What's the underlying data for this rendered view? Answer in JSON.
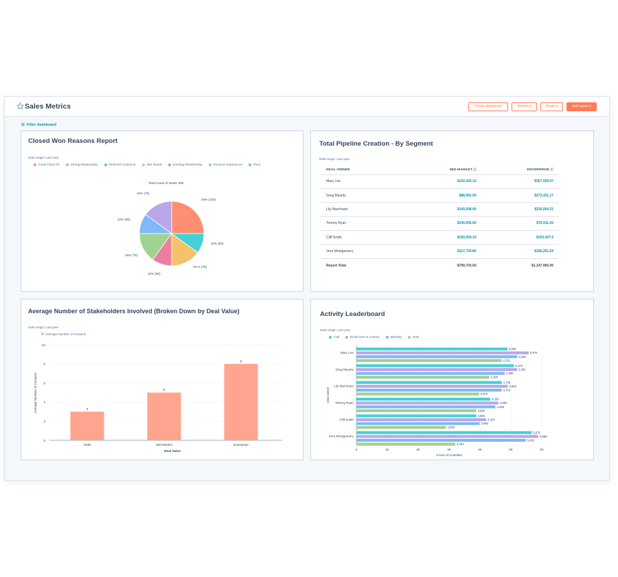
{
  "header": {
    "title": "Sales Metrics",
    "buttons": {
      "create_dashboard": "Create dashboard",
      "actions": "Actions ▾",
      "share": "Share ▾",
      "add_report": "Add report ▾"
    }
  },
  "filter_label": "Filter dashboard",
  "colors": {
    "accent": "#ff7a59",
    "link": "#0091ae",
    "text": "#33475b"
  },
  "closed_won": {
    "title": "Closed Won Reasons Report",
    "date_range": "Date range: Last Year",
    "legend": [
      {
        "name": "Good Client Fit",
        "color": "#ff8f73"
      },
      {
        "name": "Strong Relationship",
        "color": "#b9a7e8"
      },
      {
        "name": "Referred Customer",
        "color": "#45d0d6"
      },
      {
        "name": "Met Needs",
        "color": "#f5c26b"
      },
      {
        "name": "Existing Relationship",
        "color": "#ea80a0"
      },
      {
        "name": "Previous Experience",
        "color": "#a2d28f"
      },
      {
        "name": "Price",
        "color": "#7fb9f7"
      }
    ],
    "total_label": "Total Count of Deals: 500",
    "slice_labels": [
      "25% (125)",
      "10% (50)",
      "15 % (75)",
      "10% (50)",
      "15% (75)",
      "10% (50)",
      "15% (75)"
    ]
  },
  "pipeline": {
    "title": "Total Pipeline Creation - By Segment",
    "date_range": "Date range: Last year",
    "headers": [
      "DEAL OWNER",
      "MID-MARKET",
      "ENTERPRISE"
    ],
    "rows": [
      [
        "Mary Lee",
        "$102,432.10",
        "$267,029.07"
      ],
      [
        "Greg Mauritz",
        "$88,981.00",
        "$272,431.17"
      ],
      [
        "Lily Marchand",
        "$100,008.00",
        "$220,004.22"
      ],
      [
        "Tommy Ryan",
        "$240,556.00",
        "$70,911.00"
      ],
      [
        "Cliff Smith",
        "$150,004.10",
        "$150,437.9"
      ],
      [
        "Vera Montgomery",
        "$117,720.80",
        "$166,251.64"
      ]
    ],
    "total": [
      "Report Total",
      "$799,702.00",
      "$1,147,065.00"
    ]
  },
  "stakeholders": {
    "title": "Average Number of Stakeholders Involved (Broken Down by Deal Value)",
    "date_range": "Date range: Last year"
  },
  "leaderboard": {
    "title": "Activity Leaderboard",
    "date_range": "Date range: Last  year"
  },
  "chart_data": [
    {
      "type": "pie",
      "title": "Closed Won Reasons Report",
      "total_label": "Total Count of Deals: 500",
      "categories": [
        "Good Client Fit",
        "Referred Customer",
        "Met Needs",
        "Existing Relationship",
        "Previous Experience",
        "Price",
        "Strong Relationship"
      ],
      "values": [
        125,
        50,
        75,
        50,
        75,
        50,
        75
      ],
      "colors": [
        "#ff8f73",
        "#45d0d6",
        "#f5c26b",
        "#ea80a0",
        "#a2d28f",
        "#7fb9f7",
        "#b9a7e8"
      ]
    },
    {
      "type": "bar",
      "title": "Average Number of Stakeholders Involved (Broken Down by Deal Value)",
      "series": [
        {
          "name": "Average Number of Contacts",
          "values": [
            3,
            5,
            8
          ],
          "color": "#ffa48e"
        }
      ],
      "categories": [
        "SMB",
        "Mid-Market",
        "Enterprise"
      ],
      "xlabel": "Deal Value",
      "ylabel": "Average Number of Contacts",
      "ylim": [
        0,
        10
      ],
      "yticks": [
        0,
        2,
        4,
        6,
        8,
        10
      ],
      "grid": true
    },
    {
      "type": "bar",
      "orientation": "horizontal",
      "title": "Activity Leaderboard",
      "categories": [
        "Mary Lee",
        "Greg Mauritz",
        "Lily Marchand",
        "Tommy Ryan",
        "Cliff Smith",
        "Vera Montgomery"
      ],
      "series": [
        {
          "name": "Call",
          "color": "#45d0d6",
          "values": [
            4889,
            5102,
            4705,
            4335,
            3880,
            5675
          ]
        },
        {
          "name": "Email sent to contact",
          "color": "#b9a7e8",
          "values": [
            5578,
            5202,
            4900,
            4600,
            4204,
            5889
          ]
        },
        {
          "name": "Meeting",
          "color": "#7fb9f7",
          "values": [
            5209,
            4800,
            4702,
            4499,
            3990,
            5482
          ]
        },
        {
          "name": "Note",
          "color": "#a2d28f",
          "values": [
            4701,
            4298,
            3970,
            3880,
            2899,
            3201
          ]
        }
      ],
      "xlabel": "Count of Activities",
      "ylabel": "Deal owner",
      "xlim": [
        0,
        6000
      ],
      "xticks": [
        "0",
        "1K",
        "2K",
        "3K",
        "4K",
        "5K",
        "6K"
      ],
      "grid": true,
      "legend_position": "top-left"
    }
  ]
}
